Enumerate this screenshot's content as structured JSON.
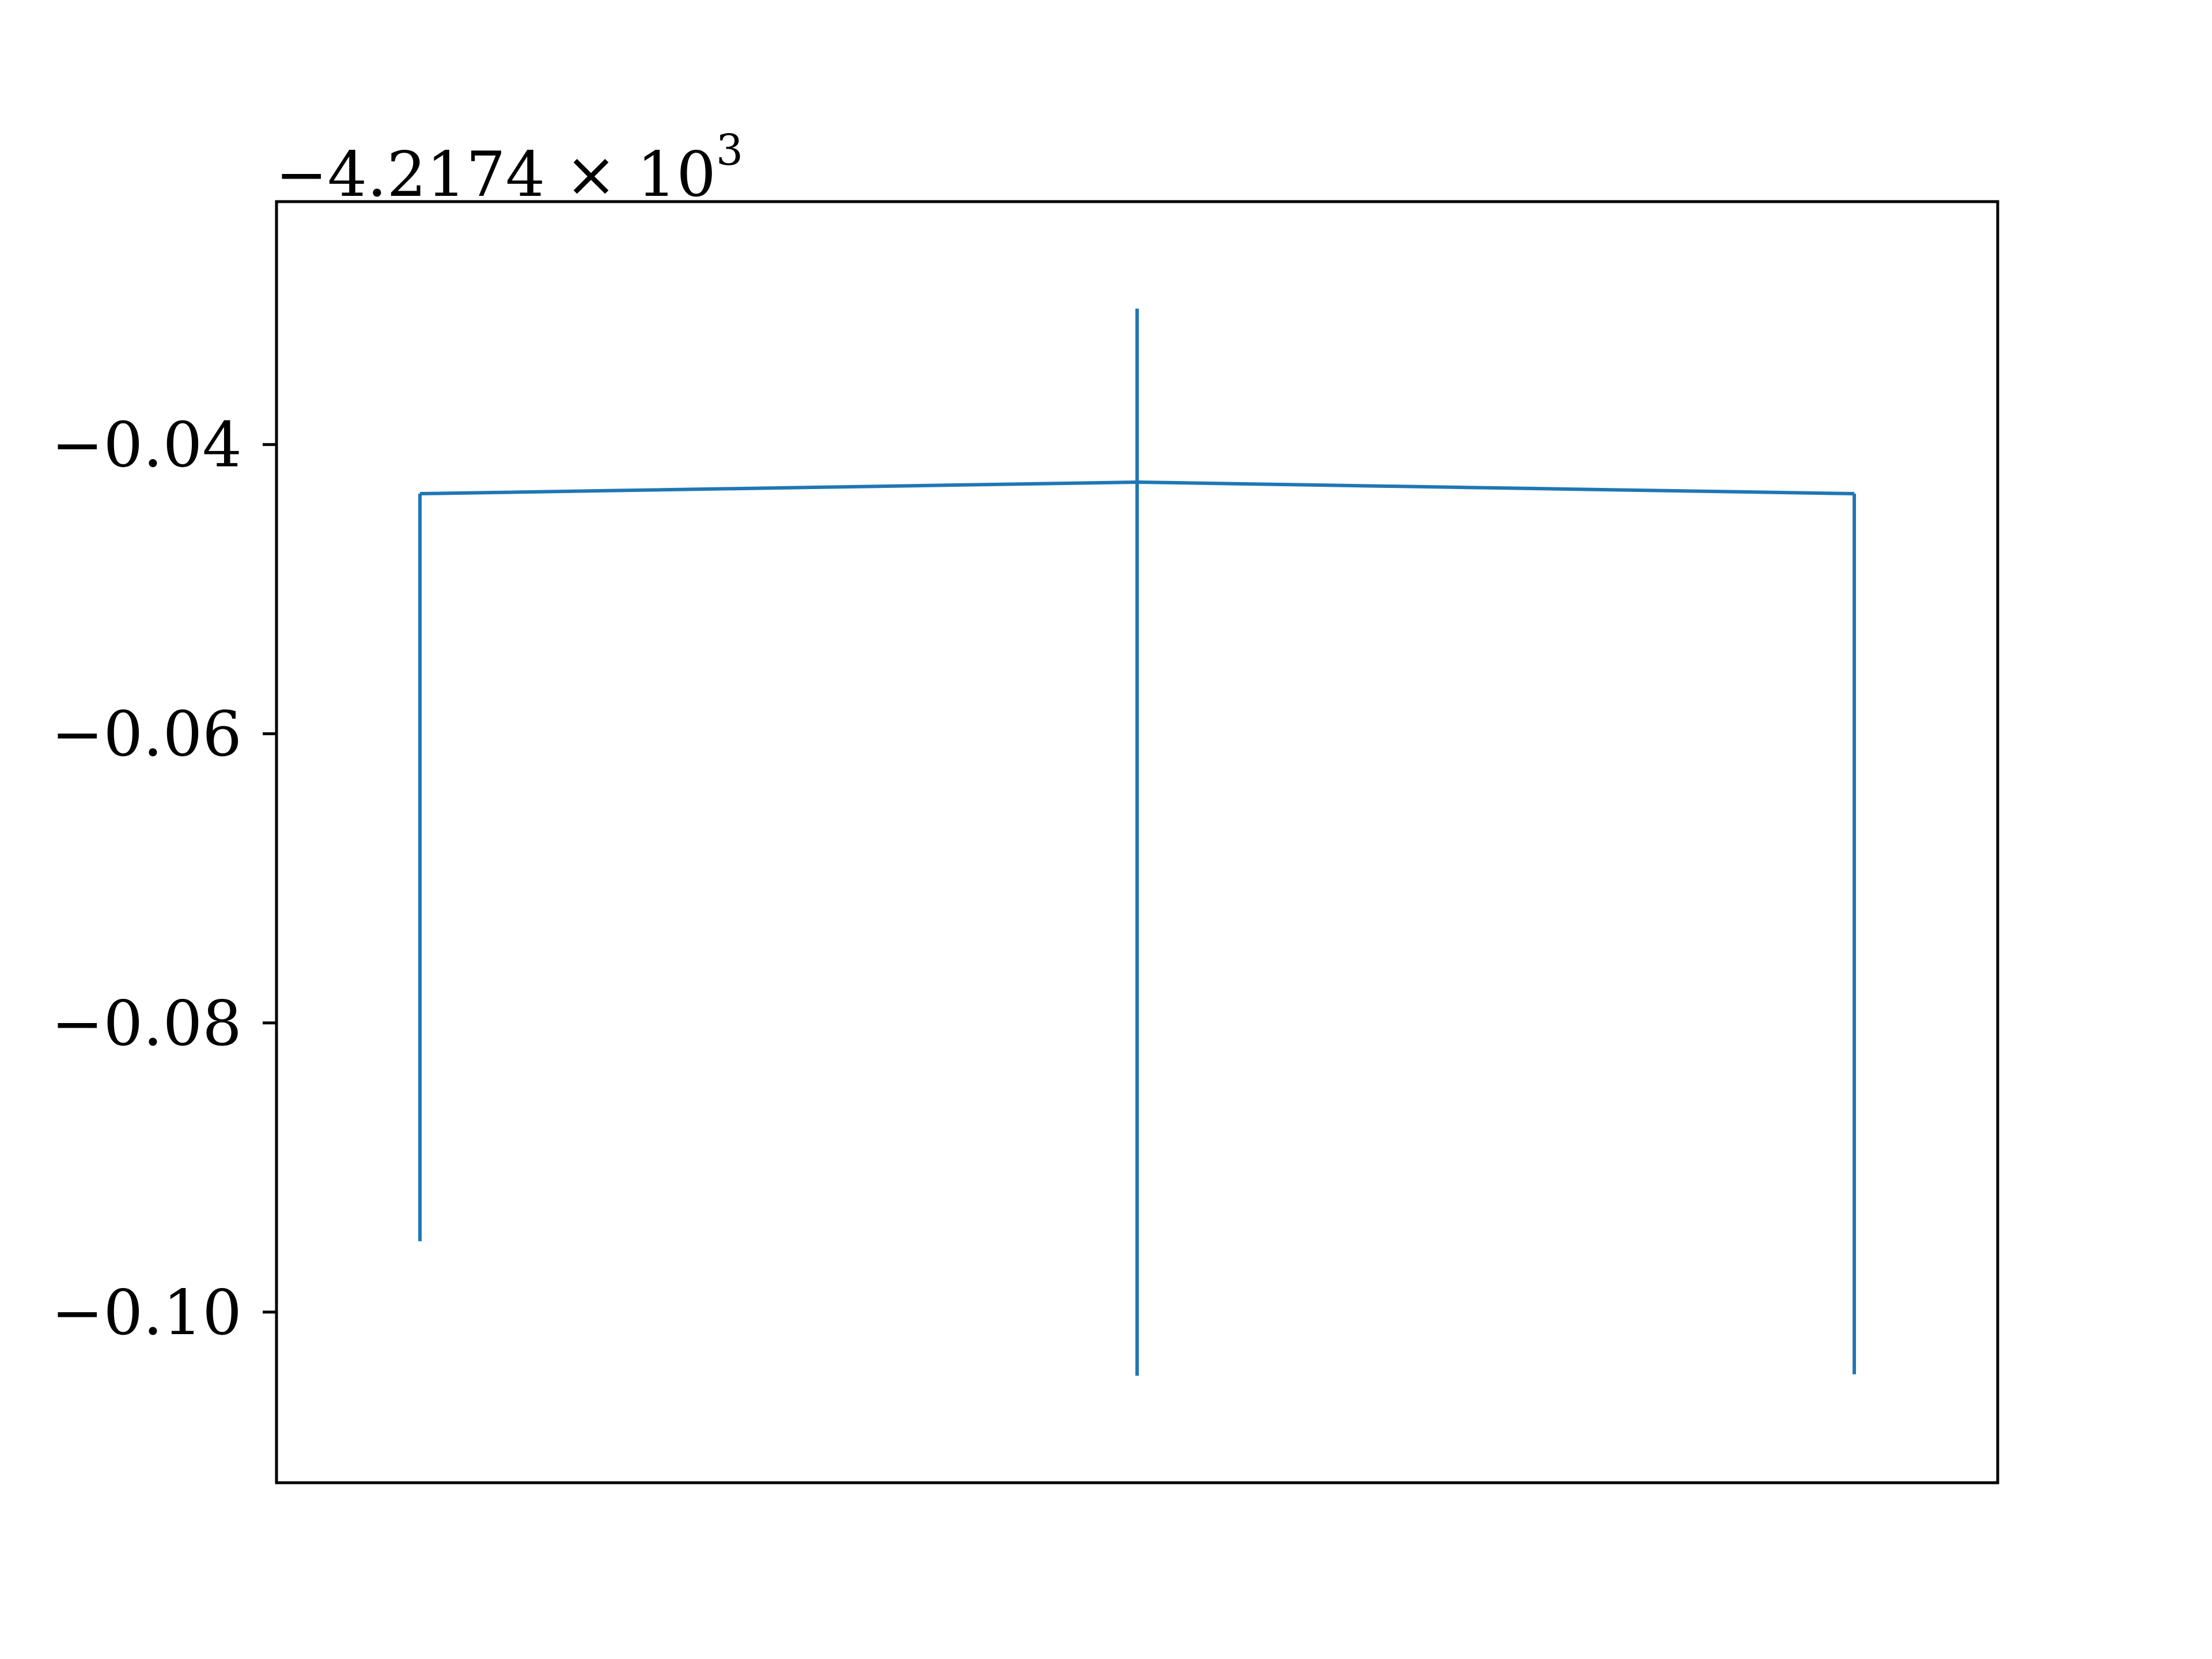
{
  "chart_data": {
    "type": "line",
    "title": "",
    "xlabel": "",
    "ylabel": "",
    "offset_text": {
      "base": "−4.2174 × 10",
      "exponent": "3"
    },
    "x_ticks_visible": false,
    "grid": false,
    "ylim": [
      -0.1118,
      -0.0232
    ],
    "yticks": [
      -0.04,
      -0.06,
      -0.08,
      -0.1
    ],
    "ytick_labels": [
      "−0.04",
      "−0.06",
      "−0.08",
      "−0.10"
    ],
    "xlim": [
      -0.2,
      2.2
    ],
    "series": [
      {
        "color": "#1f77b4",
        "x": [
          0,
          1,
          2
        ],
        "y": [
          -0.0434,
          -0.0426,
          -0.0434
        ],
        "error_low": [
          -0.0951,
          -0.1044,
          -0.1043
        ],
        "error_high": [
          -0.0434,
          -0.0306,
          -0.0434
        ]
      }
    ]
  }
}
